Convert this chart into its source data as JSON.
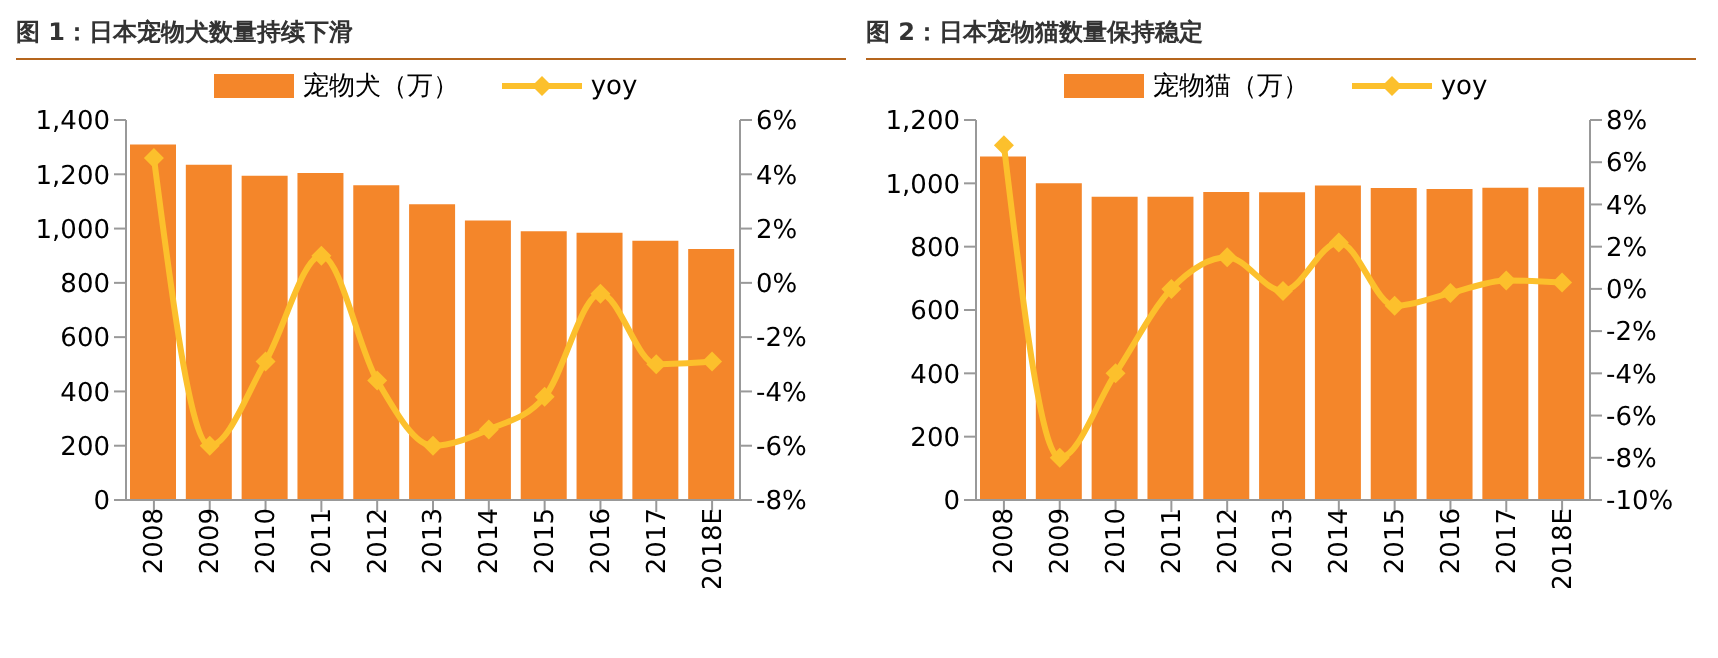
{
  "chart_data": [
    {
      "type": "bar",
      "title": "图 1：日本宠物犬数量持续下滑",
      "categories": [
        "2008",
        "2009",
        "2010",
        "2011",
        "2012",
        "2013",
        "2014",
        "2015",
        "2016",
        "2017",
        "2018E"
      ],
      "series": [
        {
          "name": "宠物犬（万）",
          "color": "#f4862a",
          "values": [
            1310,
            1235,
            1195,
            1205,
            1160,
            1090,
            1030,
            990,
            985,
            955,
            925
          ]
        },
        {
          "name": "yoy",
          "type": "line",
          "axis": "y2",
          "color": "#fcc02c",
          "values": [
            4.6,
            -6,
            -2.9,
            1,
            -3.6,
            -6,
            -5.4,
            -4.2,
            -0.4,
            -3,
            -2.9
          ]
        }
      ],
      "ylim": [
        0,
        1400
      ],
      "yticks": [
        0,
        200,
        400,
        600,
        800,
        {
          "value": 1000,
          "label": "1,000"
        },
        {
          "value": 1200,
          "label": "1,200"
        },
        {
          "value": 1400,
          "label": "1,400"
        }
      ],
      "y2lim": [
        -8,
        6
      ],
      "y2ticks": [
        {
          "value": -8,
          "label": "-8%"
        },
        {
          "value": -6,
          "label": "-6%"
        },
        {
          "value": -4,
          "label": "-4%"
        },
        {
          "value": -2,
          "label": "-2%"
        },
        {
          "value": 0,
          "label": "0%"
        },
        {
          "value": 2,
          "label": "2%"
        },
        {
          "value": 4,
          "label": "4%"
        },
        {
          "value": 6,
          "label": "6%"
        }
      ],
      "grid": false,
      "legend": "top",
      "marker": "diamond",
      "line_style": "solid"
    },
    {
      "type": "bar",
      "title": "图 2：日本宠物猫数量保持稳定",
      "categories": [
        "2008",
        "2009",
        "2010",
        "2011",
        "2012",
        "2013",
        "2014",
        "2015",
        "2016",
        "2017",
        "2018E"
      ],
      "series": [
        {
          "name": "宠物猫（万）",
          "color": "#f4862a",
          "values": [
            1085,
            1000,
            958,
            958,
            973,
            972,
            993,
            985,
            982,
            986,
            988
          ]
        },
        {
          "name": "yoy",
          "type": "line",
          "axis": "y2",
          "color": "#fcc02c",
          "values": [
            6.8,
            -8,
            -4,
            0,
            1.5,
            -0.1,
            2.2,
            -0.8,
            -0.2,
            0.4,
            0.3
          ]
        }
      ],
      "ylim": [
        0,
        1200
      ],
      "yticks": [
        0,
        200,
        400,
        600,
        800,
        {
          "value": 1000,
          "label": "1,000"
        },
        {
          "value": 1200,
          "label": "1,200"
        }
      ],
      "y2lim": [
        -10,
        8
      ],
      "y2ticks": [
        {
          "value": -10,
          "label": "-10%"
        },
        {
          "value": -8,
          "label": "-8%"
        },
        {
          "value": -6,
          "label": "-6%"
        },
        {
          "value": -4,
          "label": "-4%"
        },
        {
          "value": -2,
          "label": "-2%"
        },
        {
          "value": 0,
          "label": "0%"
        },
        {
          "value": 2,
          "label": "2%"
        },
        {
          "value": 4,
          "label": "4%"
        },
        {
          "value": 6,
          "label": "6%"
        },
        {
          "value": 8,
          "label": "8%"
        }
      ],
      "grid": false,
      "legend": "top",
      "marker": "diamond",
      "line_style": "solid"
    }
  ]
}
